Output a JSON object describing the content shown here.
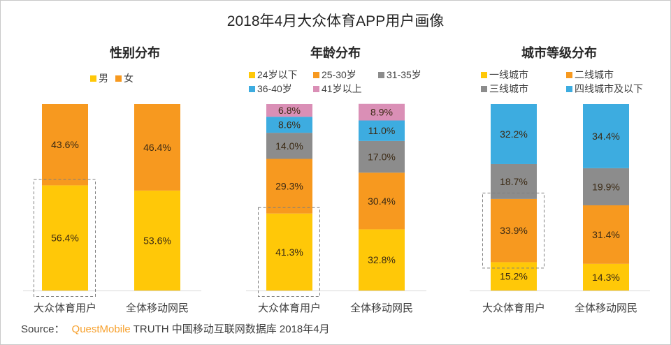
{
  "title": "2018年4月大众体育APP用户画像",
  "source": {
    "prefix": "Source：",
    "brand": "QuestMobile",
    "suffix": "TRUTH 中国移动互联网数据库 2018年4月"
  },
  "chart_data": [
    {
      "type": "bar",
      "stacked": true,
      "title": "性别分布",
      "categories": [
        "大众体育用户",
        "全体移动网民"
      ],
      "series": [
        {
          "name": "男",
          "color": "#FFC808",
          "values": [
            56.4,
            53.6
          ]
        },
        {
          "name": "女",
          "color": "#F7991F",
          "values": [
            43.6,
            46.4
          ]
        }
      ],
      "highlight": {
        "category": "大众体育用户",
        "series": "男"
      },
      "ylim": [
        0,
        100
      ],
      "unit": "%"
    },
    {
      "type": "bar",
      "stacked": true,
      "title": "年龄分布",
      "categories": [
        "大众体育用户",
        "全体移动网民"
      ],
      "series": [
        {
          "name": "24岁以下",
          "color": "#FFC808",
          "values": [
            41.3,
            32.8
          ]
        },
        {
          "name": "25-30岁",
          "color": "#F7991F",
          "values": [
            29.3,
            30.4
          ]
        },
        {
          "name": "31-35岁",
          "color": "#8C8C8C",
          "values": [
            14.0,
            17.0
          ]
        },
        {
          "name": "36-40岁",
          "color": "#3DACE0",
          "values": [
            8.6,
            11.0
          ]
        },
        {
          "name": "41岁以上",
          "color": "#DA8FB6",
          "values": [
            6.8,
            8.9
          ]
        }
      ],
      "highlight": {
        "category": "大众体育用户",
        "series": "24岁以下"
      },
      "ylim": [
        0,
        100
      ],
      "unit": "%"
    },
    {
      "type": "bar",
      "stacked": true,
      "title": "城市等级分布",
      "categories": [
        "大众体育用户",
        "全体移动网民"
      ],
      "series": [
        {
          "name": "一线城市",
          "color": "#FFC808",
          "values": [
            15.2,
            14.3
          ]
        },
        {
          "name": "二线城市",
          "color": "#F7991F",
          "values": [
            33.9,
            31.4
          ]
        },
        {
          "name": "三线城市",
          "color": "#8C8C8C",
          "values": [
            18.7,
            19.9
          ]
        },
        {
          "name": "四线城市及以下",
          "color": "#3DACE0",
          "values": [
            32.2,
            34.4
          ]
        }
      ],
      "highlight": {
        "category": "大众体育用户",
        "series": "二线城市"
      },
      "ylim": [
        0,
        100
      ],
      "unit": "%"
    }
  ]
}
